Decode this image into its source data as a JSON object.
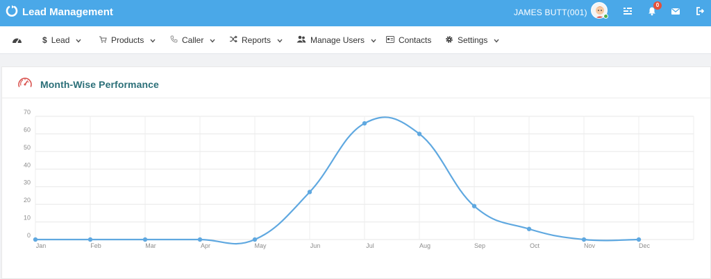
{
  "app": {
    "title": "Lead Management",
    "user_name": "JAMES BUTT(001)",
    "notification_count": "0",
    "accent_color": "#4aa8e8"
  },
  "icons": {
    "logo": "power-logo-icon",
    "avatar": "user-avatar",
    "settings": "sliders-icon",
    "notifications": "bell-icon",
    "messages": "mail-icon",
    "logout": "logout-icon"
  },
  "menu": {
    "items": [
      {
        "label": "",
        "icon": "dashboard-icon",
        "dropdown": false
      },
      {
        "label": "Lead",
        "icon": "dollar-icon",
        "dropdown": true
      },
      {
        "label": "Products",
        "icon": "cart-icon",
        "dropdown": true
      },
      {
        "label": "Caller",
        "icon": "phone-icon",
        "dropdown": true
      },
      {
        "label": "Reports",
        "icon": "shuffle-icon",
        "dropdown": true
      },
      {
        "label": "Manage Users",
        "icon": "users-icon",
        "dropdown": true
      },
      {
        "label": "Contacts",
        "icon": "contact-card-icon",
        "dropdown": false
      },
      {
        "label": "Settings",
        "icon": "gear-icon",
        "dropdown": true
      }
    ]
  },
  "panel": {
    "title": "Month-Wise Performance",
    "icon": "speedometer-icon"
  },
  "chart_data": {
    "type": "line",
    "categories": [
      "Jan",
      "Feb",
      "Mar",
      "Apr",
      "May",
      "Jun",
      "Jul",
      "Aug",
      "Sep",
      "Oct",
      "Nov",
      "Dec"
    ],
    "values": [
      0,
      0,
      0,
      0,
      0,
      27,
      66,
      60,
      19,
      6,
      0,
      0
    ],
    "yticks": [
      "0",
      "10",
      "20",
      "30",
      "40",
      "50",
      "60",
      "70"
    ],
    "ylim": [
      0,
      70
    ],
    "grid": true,
    "line_color": "#5fa8e0",
    "smooth": true
  }
}
